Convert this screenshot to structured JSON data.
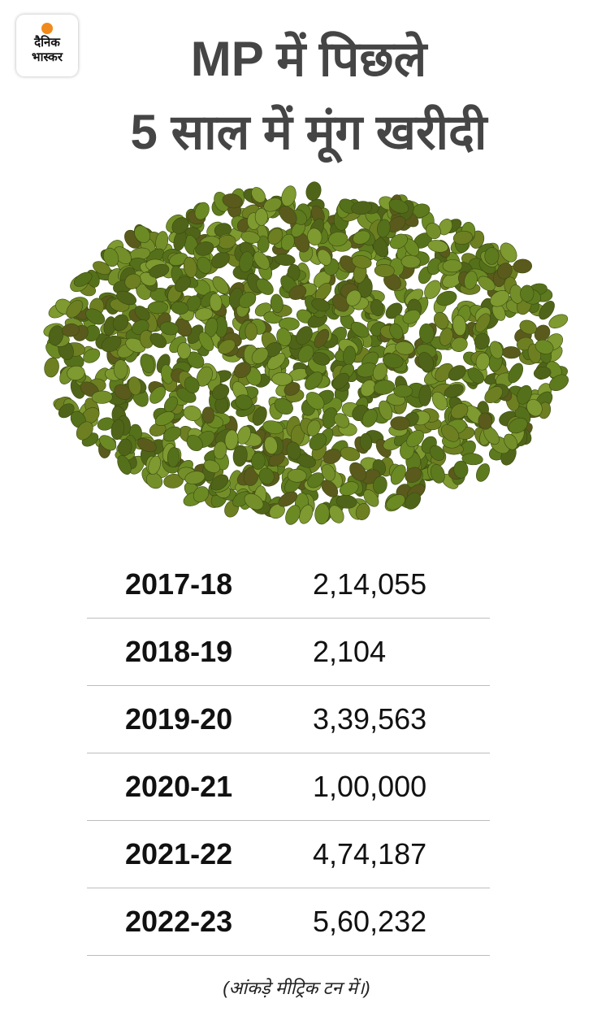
{
  "logo": {
    "line1": "दैनिक",
    "line2": "भास्कर"
  },
  "header": {
    "title": [
      "MP में पिछले",
      "5 साल में मूंग खरीदी"
    ]
  },
  "table": {
    "rows": [
      [
        "2017-18",
        "2,14,055"
      ],
      [
        "2018-19",
        "2,104"
      ],
      [
        "2019-20",
        "3,39,563"
      ],
      [
        "2020-21",
        "1,00,000"
      ],
      [
        "2021-22",
        "4,74,187"
      ],
      [
        "2022-23",
        "5,60,232"
      ]
    ]
  },
  "footnote": "(आंकड़े मीट्रिक टन में।)"
}
